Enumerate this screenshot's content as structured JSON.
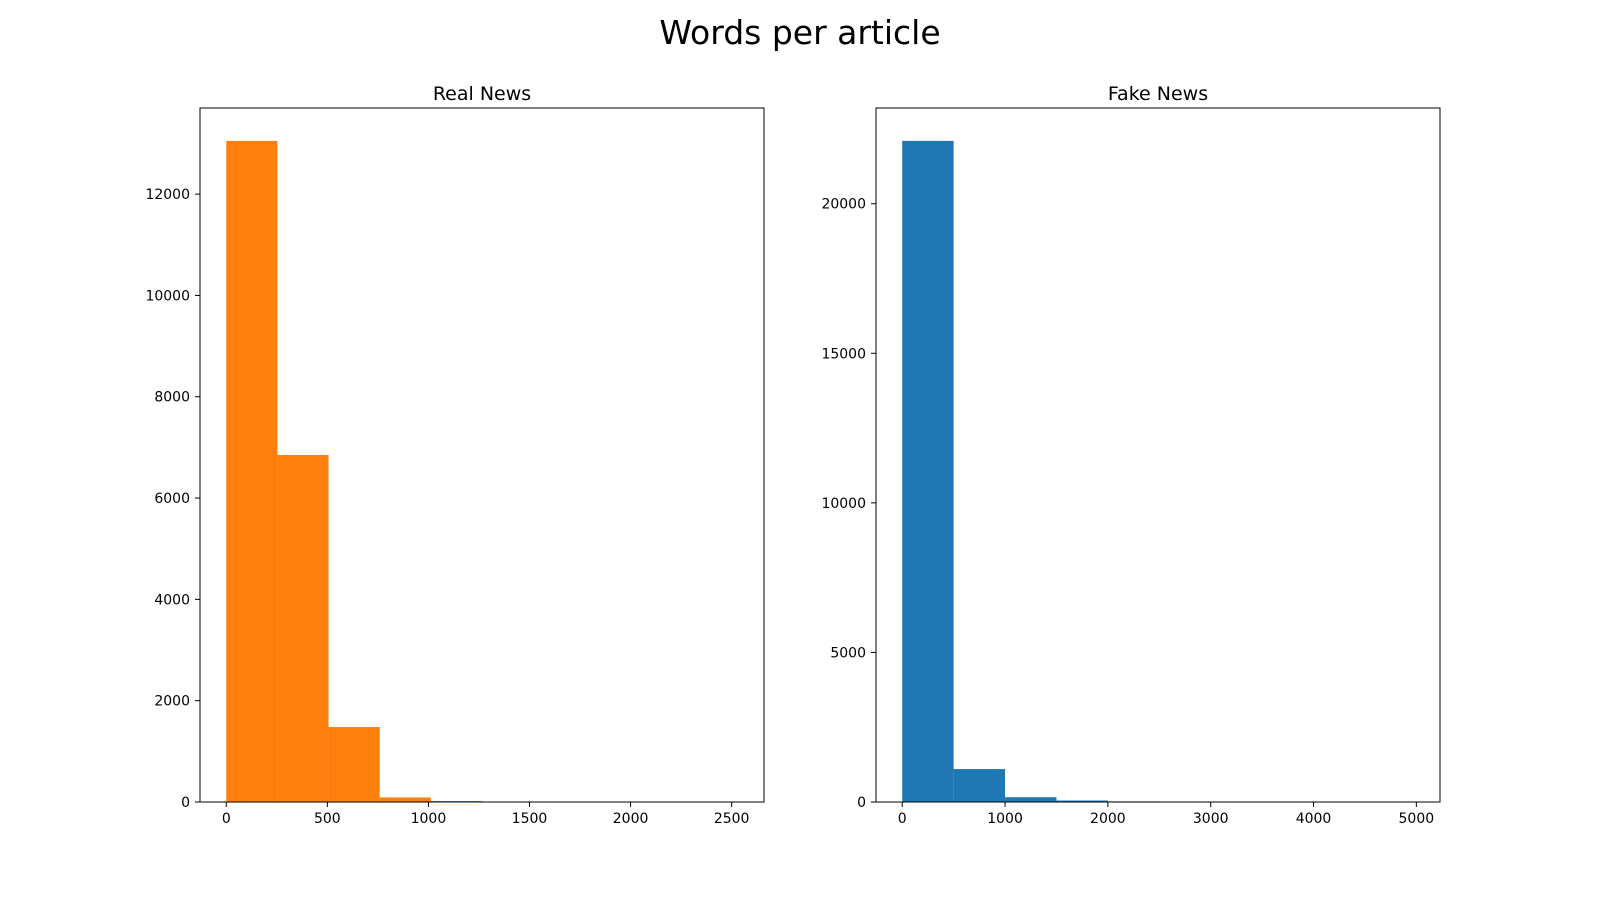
{
  "figure": {
    "title": "Words per article"
  },
  "chart_data": [
    {
      "type": "bar",
      "title": "Real News",
      "xlabel": "",
      "ylabel": "",
      "color": "#ff7f0e",
      "bin_edges": [
        0,
        253,
        506,
        759,
        1012,
        1265,
        1518,
        1771,
        2024,
        2277,
        2530
      ],
      "values": [
        13050,
        6850,
        1480,
        90,
        20,
        5,
        2,
        1,
        0,
        1
      ],
      "xlim": [
        -130,
        2660
      ],
      "ylim": [
        0,
        13700
      ],
      "xticks": [
        0,
        500,
        1000,
        1500,
        2000,
        2500
      ],
      "yticks": [
        0,
        2000,
        4000,
        6000,
        8000,
        10000,
        12000
      ],
      "grid": false,
      "legend": "none"
    },
    {
      "type": "bar",
      "title": "Fake News",
      "xlabel": "",
      "ylabel": "",
      "color": "#1f77b4",
      "bin_edges": [
        0,
        500,
        1000,
        1500,
        2000,
        2500,
        3000,
        3500,
        4000,
        4500,
        5000
      ],
      "values": [
        22100,
        1100,
        160,
        50,
        20,
        5,
        3,
        2,
        1,
        1
      ],
      "xlim": [
        -255,
        5230
      ],
      "ylim": [
        0,
        23200
      ],
      "xticks": [
        0,
        1000,
        2000,
        3000,
        4000,
        5000
      ],
      "yticks": [
        0,
        5000,
        10000,
        15000,
        20000
      ],
      "grid": false,
      "legend": "none"
    }
  ]
}
